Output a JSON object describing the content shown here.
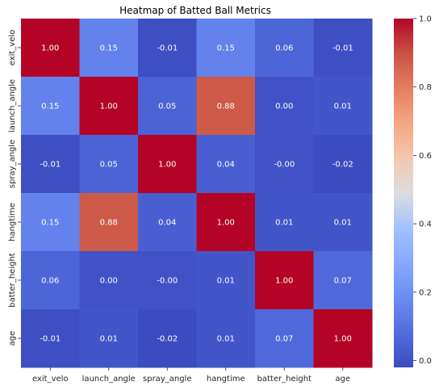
{
  "chart_data": {
    "type": "heatmap",
    "title": "Heatmap of Batted Ball Metrics",
    "x_labels": [
      "exit_velo",
      "launch_angle",
      "spray_angle",
      "hangtime",
      "batter_height",
      "age"
    ],
    "y_labels": [
      "exit_velo",
      "launch_angle",
      "spray_angle",
      "hangtime",
      "batter_height",
      "age"
    ],
    "values": [
      [
        1.0,
        0.15,
        -0.01,
        0.15,
        0.06,
        -0.01
      ],
      [
        0.15,
        1.0,
        0.05,
        0.88,
        0.0,
        0.01
      ],
      [
        -0.01,
        0.05,
        1.0,
        0.04,
        -0.0,
        -0.02
      ],
      [
        0.15,
        0.88,
        0.04,
        1.0,
        0.01,
        0.01
      ],
      [
        0.06,
        0.0,
        -0.0,
        0.01,
        1.0,
        0.07
      ],
      [
        -0.01,
        0.01,
        -0.02,
        0.01,
        0.07,
        1.0
      ]
    ],
    "cell_labels": [
      [
        "1.00",
        "0.15",
        "-0.01",
        "0.15",
        "0.06",
        "-0.01"
      ],
      [
        "0.15",
        "1.00",
        "0.05",
        "0.88",
        "0.00",
        "0.01"
      ],
      [
        "-0.01",
        "0.05",
        "1.00",
        "0.04",
        "-0.00",
        "-0.02"
      ],
      [
        "0.15",
        "0.88",
        "0.04",
        "1.00",
        "0.01",
        "0.01"
      ],
      [
        "0.06",
        "0.00",
        "-0.00",
        "0.01",
        "1.00",
        "0.07"
      ],
      [
        "-0.01",
        "0.01",
        "-0.02",
        "0.01",
        "0.07",
        "1.00"
      ]
    ],
    "colormap": "coolwarm",
    "value_range": [
      -0.02,
      1.0
    ],
    "colorbar": {
      "ticks": [
        0.0,
        0.2,
        0.4,
        0.6,
        0.8,
        1.0
      ],
      "tick_labels": [
        "0.0",
        "0.2",
        "0.4",
        "0.6",
        "0.8",
        "1.0"
      ]
    },
    "annotation_color": "#ffffff"
  }
}
